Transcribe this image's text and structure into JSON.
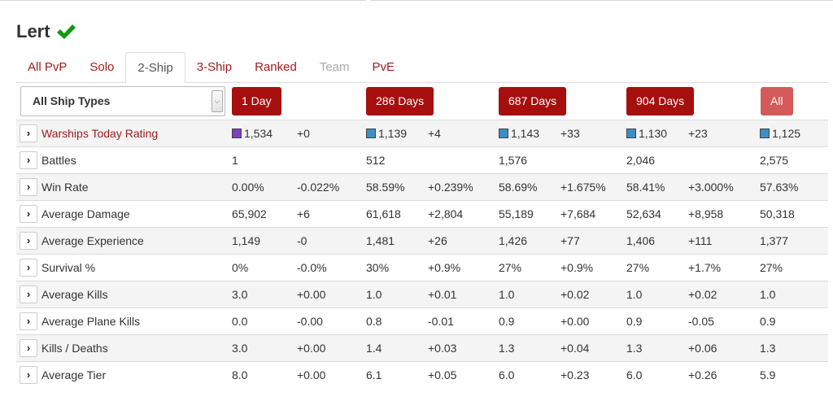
{
  "player": {
    "name": "Lert",
    "verified_icon": "checkmark-icon",
    "verified_color": "#119911"
  },
  "tabs": [
    {
      "label": "All PvP",
      "state": "normal"
    },
    {
      "label": "Solo",
      "state": "normal"
    },
    {
      "label": "2-Ship",
      "state": "active"
    },
    {
      "label": "3-Ship",
      "state": "normal"
    },
    {
      "label": "Ranked",
      "state": "normal"
    },
    {
      "label": "Team",
      "state": "disabled"
    },
    {
      "label": "PvE",
      "state": "normal"
    }
  ],
  "filter": {
    "selected": "All Ship Types"
  },
  "periods": [
    "1 Day",
    "286 Days",
    "687 Days",
    "904 Days",
    "All"
  ],
  "colors": {
    "accent": "#a70e0e",
    "accent_light": "#d45a5a",
    "positive": "#2e9a2e",
    "negative": "#c0392b",
    "rating_purple": "#7b3fc4",
    "rating_blue": "#3a8fc7"
  },
  "rows": [
    {
      "label": "Warships Today Rating",
      "link": true,
      "cells": [
        "1,534",
        "+0",
        "1,139",
        "+4",
        "1,143",
        "+33",
        "1,130",
        "+23",
        "1,125"
      ],
      "swatches": [
        "rating-purple",
        "",
        "rating-blue",
        "",
        "rating-blue",
        "",
        "rating-blue",
        "",
        "rating-blue"
      ]
    },
    {
      "label": "Battles",
      "cells": [
        "1",
        "",
        "512",
        "",
        "1,576",
        "",
        "2,046",
        "",
        "2,575"
      ]
    },
    {
      "label": "Win Rate",
      "cells": [
        "0.00%",
        "-0.022%",
        "58.59%",
        "+0.239%",
        "58.69%",
        "+1.675%",
        "58.41%",
        "+3.000%",
        "57.63%"
      ]
    },
    {
      "label": "Average Damage",
      "cells": [
        "65,902",
        "+6",
        "61,618",
        "+2,804",
        "55,189",
        "+7,684",
        "52,634",
        "+8,958",
        "50,318"
      ]
    },
    {
      "label": "Average Experience",
      "cells": [
        "1,149",
        "-0",
        "1,481",
        "+26",
        "1,426",
        "+77",
        "1,406",
        "+111",
        "1,377"
      ]
    },
    {
      "label": "Survival %",
      "cells": [
        "0%",
        "-0.0%",
        "30%",
        "+0.9%",
        "27%",
        "+0.9%",
        "27%",
        "+1.7%",
        "27%"
      ]
    },
    {
      "label": "Average Kills",
      "cells": [
        "3.0",
        "+0.00",
        "1.0",
        "+0.01",
        "1.0",
        "+0.02",
        "1.0",
        "+0.02",
        "1.0"
      ]
    },
    {
      "label": "Average Plane Kills",
      "cells": [
        "0.0",
        "-0.00",
        "0.8",
        "-0.01",
        "0.9",
        "+0.00",
        "0.9",
        "-0.05",
        "0.9"
      ]
    },
    {
      "label": "Kills / Deaths",
      "cells": [
        "3.0",
        "+0.00",
        "1.4",
        "+0.03",
        "1.3",
        "+0.04",
        "1.3",
        "+0.06",
        "1.3"
      ]
    },
    {
      "label": "Average Tier",
      "cells": [
        "8.0",
        "+0.00",
        "6.1",
        "+0.05",
        "6.0",
        "+0.23",
        "6.0",
        "+0.26",
        "5.9"
      ]
    }
  ],
  "delta_styles": [
    [
      "",
      "plain",
      "",
      "pos",
      "",
      "pos",
      "",
      "pos",
      ""
    ],
    [
      "",
      "",
      "",
      "",
      "",
      "",
      "",
      "",
      ""
    ],
    [
      "",
      "plain",
      "",
      "pos",
      "",
      "pos",
      "",
      "pos",
      ""
    ],
    [
      "",
      "plain",
      "",
      "pos",
      "",
      "pos",
      "",
      "pos",
      ""
    ],
    [
      "",
      "plain",
      "",
      "pos",
      "",
      "pos",
      "",
      "pos",
      ""
    ],
    [
      "",
      "plain",
      "",
      "pos",
      "",
      "pos",
      "",
      "pos",
      ""
    ],
    [
      "",
      "plain",
      "",
      "pos",
      "",
      "pos",
      "",
      "pos",
      ""
    ],
    [
      "",
      "plain",
      "",
      "neg",
      "",
      "pos",
      "",
      "neg",
      ""
    ],
    [
      "",
      "plain",
      "",
      "pos",
      "",
      "pos",
      "",
      "pos",
      ""
    ],
    [
      "",
      "plain",
      "",
      "pos",
      "",
      "pos",
      "",
      "pos",
      ""
    ]
  ]
}
